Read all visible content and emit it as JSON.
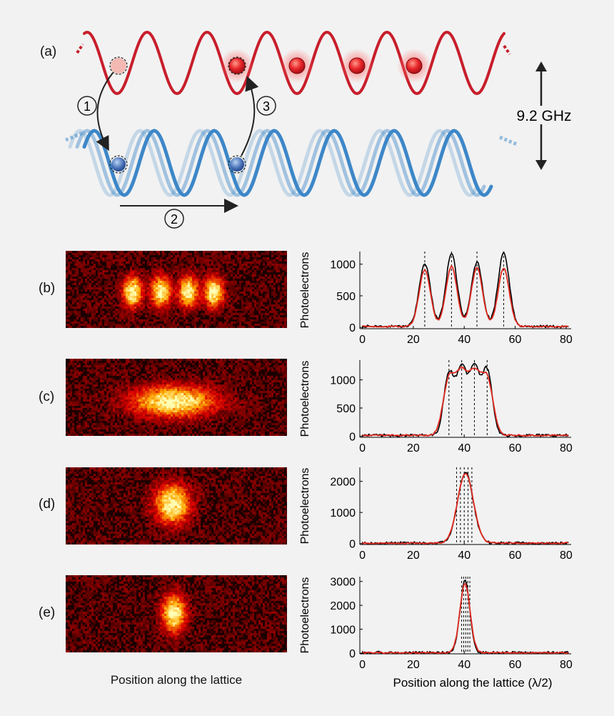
{
  "panel_a": {
    "label": "(a)",
    "frequency": "9.2 GHz",
    "steps": [
      "1",
      "2",
      "3"
    ],
    "colors": {
      "red": "#c81e2b",
      "blue": "#3d87c8"
    }
  },
  "panels": [
    {
      "label": "(b)"
    },
    {
      "label": "(c)"
    },
    {
      "label": "(d)"
    },
    {
      "label": "(e)"
    }
  ],
  "image_xlabel": "Position along the lattice",
  "chart_data": [
    {
      "type": "line",
      "panel": "(b)",
      "xlabel": "",
      "ylabel": "Photoelectrons",
      "xlim": [
        -1,
        82
      ],
      "ylim": [
        -20,
        1200
      ],
      "xticks": [
        "0",
        "20",
        "40",
        "60",
        "80"
      ],
      "yticks": [
        "0",
        "500",
        "1000"
      ],
      "ytick_values": [
        0,
        500,
        1000
      ],
      "dashed_x": [
        24.5,
        35,
        45,
        55.5
      ],
      "series": [
        {
          "color": "#000000",
          "peaks": [
            [
              24.5,
              1000,
              2.2
            ],
            [
              35,
              1150,
              2.2
            ],
            [
              45,
              1020,
              2.2
            ],
            [
              55.5,
              1170,
              2.2
            ]
          ]
        },
        {
          "color": "#e0281e",
          "peaks": [
            [
              24.5,
              900,
              2.2
            ],
            [
              35,
              950,
              2.2
            ],
            [
              45,
              930,
              2.2
            ],
            [
              55.5,
              920,
              2.2
            ]
          ]
        }
      ]
    },
    {
      "type": "line",
      "panel": "(c)",
      "xlabel": "",
      "ylabel": "Photoelectrons",
      "xlim": [
        -1,
        82
      ],
      "ylim": [
        -20,
        1350
      ],
      "xticks": [
        "0",
        "20",
        "40",
        "60",
        "80"
      ],
      "yticks": [
        "0",
        "500",
        "1000"
      ],
      "ytick_values": [
        0,
        500,
        1000
      ],
      "dashed_x": [
        34,
        39,
        44,
        49
      ],
      "series": [
        {
          "color": "#000000",
          "peaks": [
            [
              34,
              1100,
              2.0
            ],
            [
              39,
              1180,
              2.0
            ],
            [
              44,
              1200,
              2.0
            ],
            [
              49,
              1150,
              2.0
            ]
          ]
        },
        {
          "color": "#e0281e",
          "peaks": [
            [
              34,
              980,
              2.3
            ],
            [
              39,
              1020,
              2.3
            ],
            [
              44,
              1010,
              2.3
            ],
            [
              49,
              990,
              2.3
            ]
          ]
        }
      ]
    },
    {
      "type": "line",
      "panel": "(d)",
      "xlabel": "",
      "ylabel": "Photoelectrons",
      "xlim": [
        -1,
        82
      ],
      "ylim": [
        -30,
        2450
      ],
      "xticks": [
        "0",
        "20",
        "40",
        "60",
        "80"
      ],
      "yticks": [
        "0",
        "1000",
        "2000"
      ],
      "ytick_values": [
        0,
        1000,
        2000
      ],
      "dashed_x": [
        37,
        38.5,
        40,
        41.5,
        43
      ],
      "series": [
        {
          "color": "#000000",
          "peaks": [
            [
              40.5,
              2280,
              3.0
            ]
          ]
        },
        {
          "color": "#e0281e",
          "peaks": [
            [
              40.5,
              2250,
              3.1
            ]
          ]
        }
      ]
    },
    {
      "type": "line",
      "panel": "(e)",
      "xlabel": "Position along the lattice (λ/2)",
      "ylabel": "Photoelectrons",
      "xlim": [
        -1,
        82
      ],
      "ylim": [
        -30,
        3200
      ],
      "xticks": [
        "0",
        "20",
        "40",
        "60",
        "80"
      ],
      "yticks": [
        "0",
        "1000",
        "2000",
        "3000"
      ],
      "ytick_values": [
        0,
        1000,
        2000,
        3000
      ],
      "dashed_x": [
        39,
        39.8,
        40.6,
        41.4,
        42.2
      ],
      "series": [
        {
          "color": "#000000",
          "peaks": [
            [
              40.3,
              3000,
              1.9
            ]
          ]
        },
        {
          "color": "#e0281e",
          "peaks": [
            [
              40.3,
              2900,
              2.0
            ]
          ]
        }
      ]
    }
  ]
}
